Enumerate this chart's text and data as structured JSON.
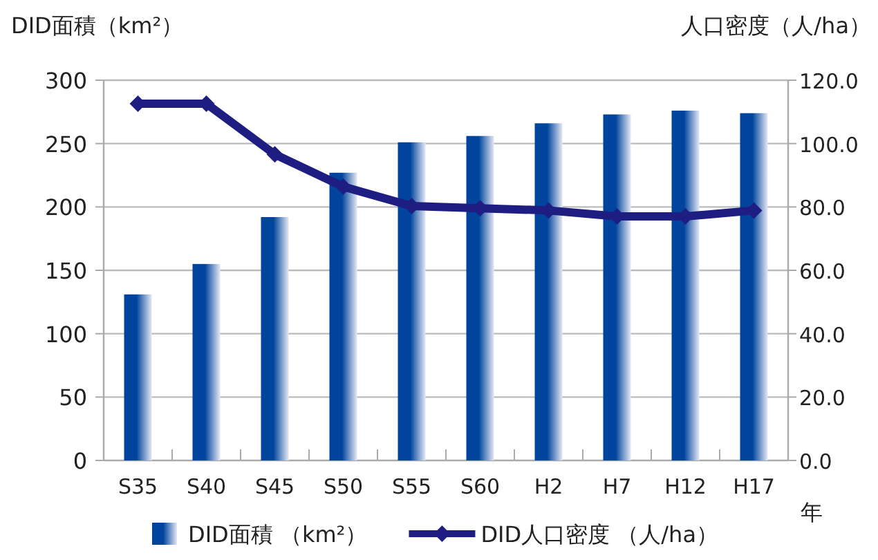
{
  "chart_data": {
    "type": "bar",
    "ylabel": "DID面積（km²）",
    "y2label": "人口密度（人/ha）",
    "xlabel": "年",
    "categories": [
      "S35",
      "S40",
      "S45",
      "S50",
      "S55",
      "S60",
      "H2",
      "H7",
      "H12",
      "H17"
    ],
    "series": [
      {
        "name": "DID面積 （km²）",
        "color": "#00449e",
        "values": [
          131,
          155,
          192,
          227,
          251,
          256,
          266,
          273,
          276,
          274
        ]
      },
      {
        "name": "DID人口密度 （人/ha）",
        "type": "line",
        "axis": "y2",
        "color": "#1e1e82",
        "marker": "diamond",
        "values": [
          112.6,
          112.6,
          96.6,
          86.4,
          80.3,
          79.6,
          78.9,
          77.0,
          77.0,
          78.9
        ]
      }
    ],
    "ylim": [
      0,
      300
    ],
    "yticks": [
      0,
      50,
      100,
      150,
      200,
      250,
      300
    ],
    "y2lim": [
      0,
      120
    ],
    "y2ticks": [
      {
        "value": 0,
        "label": "0.0"
      },
      {
        "value": 20,
        "label": "20.0"
      },
      {
        "value": 40,
        "label": "40.0"
      },
      {
        "value": 60,
        "label": "60.0"
      },
      {
        "value": 80,
        "label": "80.0"
      },
      {
        "value": 100,
        "label": "100.0"
      },
      {
        "value": 120,
        "label": "120.0"
      }
    ],
    "grid": "y",
    "legend": "bottom"
  }
}
